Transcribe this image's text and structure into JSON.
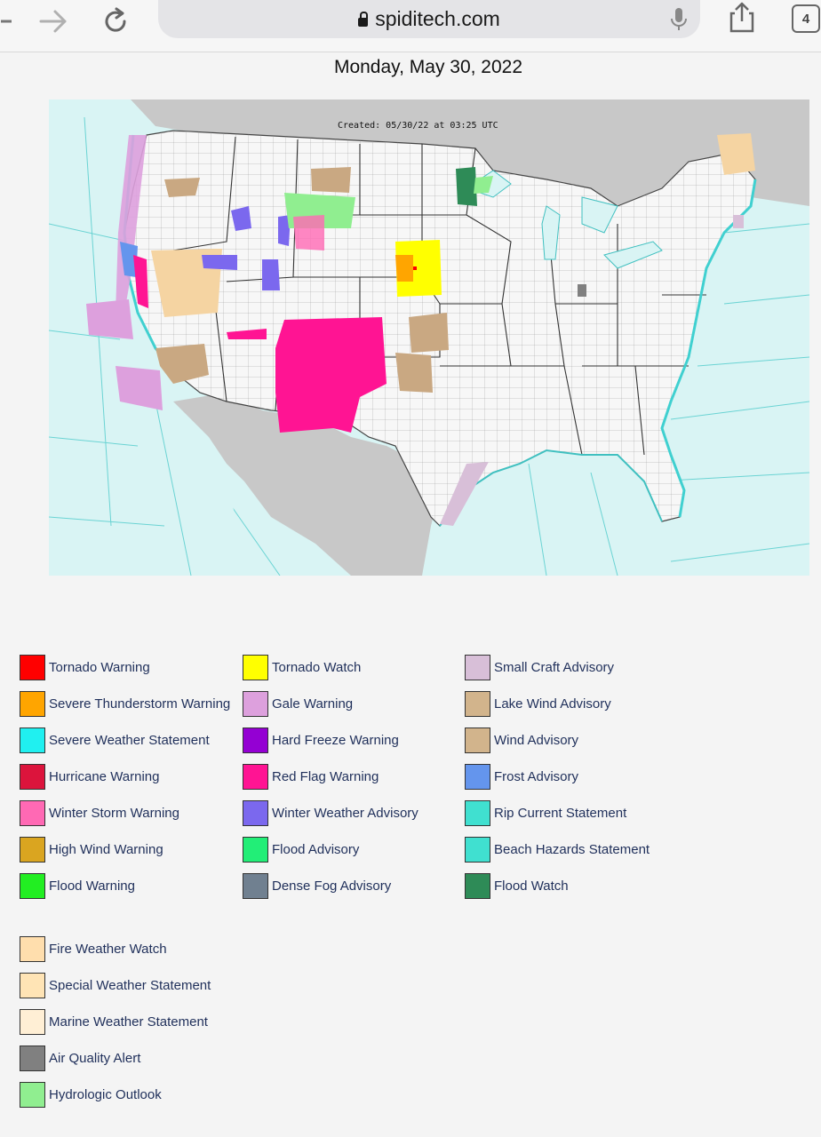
{
  "browser": {
    "url": "spiditech.com",
    "tab_count": "4"
  },
  "page": {
    "date": "Monday, May 30, 2022",
    "map_created": "Created: 05/30/22 at 03:25 UTC"
  },
  "legend": {
    "col1": [
      {
        "label": "Tornado Warning",
        "color": "#ff0000"
      },
      {
        "label": "Severe Thunderstorm Warning",
        "color": "#ffa500"
      },
      {
        "label": "Severe Weather Statement",
        "color": "#20f0f0"
      },
      {
        "label": "Hurricane Warning",
        "color": "#dc143c"
      },
      {
        "label": "Winter Storm Warning",
        "color": "#ff69b4"
      },
      {
        "label": "High Wind Warning",
        "color": "#daa520"
      },
      {
        "label": "Flood Warning",
        "color": "#22ee22"
      }
    ],
    "col2": [
      {
        "label": "Tornado Watch",
        "color": "#ffff00"
      },
      {
        "label": "Gale Warning",
        "color": "#dda0dd"
      },
      {
        "label": "Hard Freeze Warning",
        "color": "#9400d3"
      },
      {
        "label": "Red Flag Warning",
        "color": "#ff1493"
      },
      {
        "label": "Winter Weather Advisory",
        "color": "#7b68ee"
      },
      {
        "label": "Flood Advisory",
        "color": "#22ee77"
      },
      {
        "label": "Dense Fog Advisory",
        "color": "#708090"
      }
    ],
    "col3": [
      {
        "label": "Small Craft Advisory",
        "color": "#d8bfd8"
      },
      {
        "label": "Lake Wind Advisory",
        "color": "#d2b48c"
      },
      {
        "label": "Wind Advisory",
        "color": "#d2b48c"
      },
      {
        "label": "Frost Advisory",
        "color": "#6495ed"
      },
      {
        "label": "Rip Current Statement",
        "color": "#40e0d0"
      },
      {
        "label": "Beach Hazards Statement",
        "color": "#40e0d0"
      },
      {
        "label": "Flood Watch",
        "color": "#2e8b57"
      }
    ],
    "col4": [
      {
        "label": "Fire Weather Watch",
        "color": "#ffdead"
      },
      {
        "label": "Special Weather Statement",
        "color": "#ffe4b5"
      },
      {
        "label": "Marine Weather Statement",
        "color": "#ffefd5"
      },
      {
        "label": "Air Quality Alert",
        "color": "#808080"
      },
      {
        "label": "Hydrologic Outlook",
        "color": "#90ee90"
      }
    ]
  }
}
